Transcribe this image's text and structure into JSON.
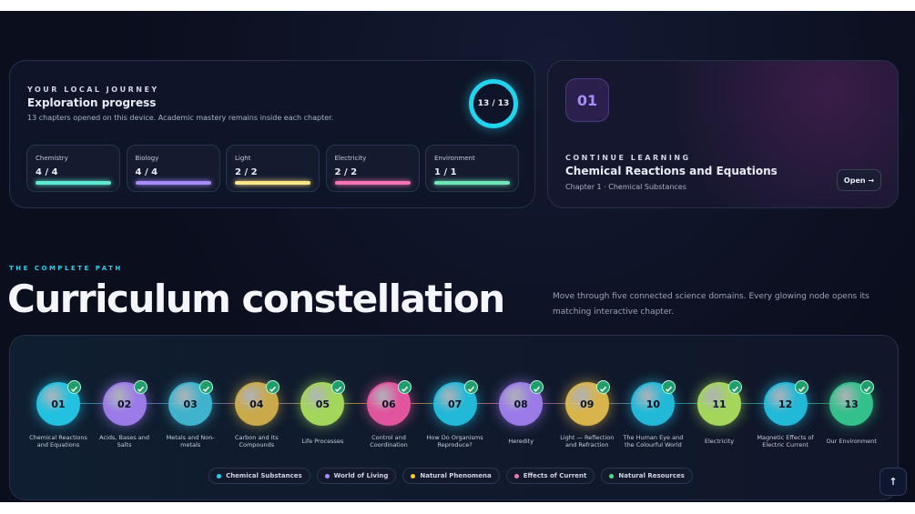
{
  "progress": {
    "eyebrow": "YOUR LOCAL JOURNEY",
    "title": "Exploration progress",
    "subtitle": "13 chapters opened on this device. Academic mastery remains inside each chapter.",
    "ring": "13 / 13",
    "domains": [
      {
        "name": "Chemistry",
        "count": "4 / 4",
        "color": "#5eead4"
      },
      {
        "name": "Biology",
        "count": "4 / 4",
        "color": "#a78bfa"
      },
      {
        "name": "Light",
        "count": "2 / 2",
        "color": "#fde68a"
      },
      {
        "name": "Electricity",
        "count": "2 / 2",
        "color": "#f472b6"
      },
      {
        "name": "Environment",
        "count": "1 / 1",
        "color": "#6ee7b7"
      }
    ]
  },
  "continue": {
    "badge": "01",
    "eyebrow": "CONTINUE LEARNING",
    "title": "Chemical Reactions and Equations",
    "subtitle": "Chapter 1 · Chemical Substances",
    "button": "Open →"
  },
  "section": {
    "eyebrow": "THE COMPLETE PATH",
    "heading": "Curriculum constellation",
    "description": "Move through five connected science domains. Every glowing node opens its matching interactive chapter."
  },
  "nodes": [
    {
      "number": "01",
      "label": "Chemical Reactions and Equations",
      "color": "#22c1e0"
    },
    {
      "number": "02",
      "label": "Acids, Bases and Salts",
      "color": "#9b7be8"
    },
    {
      "number": "03",
      "label": "Metals and Non-metals",
      "color": "#3fb3cc"
    },
    {
      "number": "04",
      "label": "Carbon and Its Compounds",
      "color": "#c9a94a"
    },
    {
      "number": "05",
      "label": "Life Processes",
      "color": "#a3d65a"
    },
    {
      "number": "06",
      "label": "Control and Coordination",
      "color": "#e0559e"
    },
    {
      "number": "07",
      "label": "How Do Organisms Reproduce?",
      "color": "#22b8d8"
    },
    {
      "number": "08",
      "label": "Heredity",
      "color": "#9b7be8"
    },
    {
      "number": "09",
      "label": "Light — Reflection and Refraction",
      "color": "#d8b44a"
    },
    {
      "number": "10",
      "label": "The Human Eye and the Colourful World",
      "color": "#22b8d8"
    },
    {
      "number": "11",
      "label": "Electricity",
      "color": "#a3d65a"
    },
    {
      "number": "12",
      "label": "Magnetic Effects of Electric Current",
      "color": "#22b8d8"
    },
    {
      "number": "13",
      "label": "Our Environment",
      "color": "#34c08a"
    }
  ],
  "legend": [
    {
      "name": "Chemical Substances",
      "color": "#22d3ee"
    },
    {
      "name": "World of Living",
      "color": "#a78bfa"
    },
    {
      "name": "Natural Phenomena",
      "color": "#facc15"
    },
    {
      "name": "Effects of Current",
      "color": "#f472b6"
    },
    {
      "name": "Natural Resources",
      "color": "#4ade80"
    }
  ],
  "scroll_top": "↑"
}
